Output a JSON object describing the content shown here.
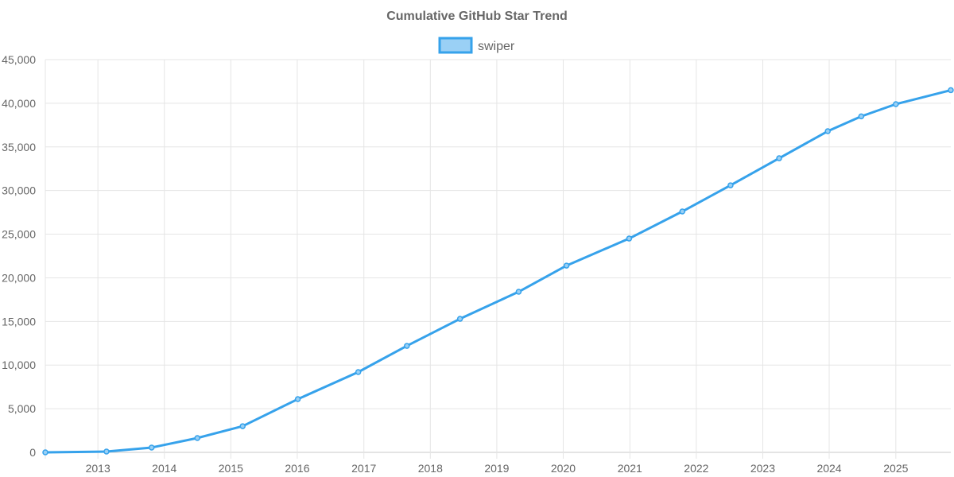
{
  "chart_data": {
    "type": "line",
    "title": "Cumulative GitHub Star Trend",
    "xlabel": "",
    "ylabel": "",
    "x_axis": "time",
    "x_tick_labels": [
      "2013",
      "2014",
      "2015",
      "2016",
      "2017",
      "2018",
      "2019",
      "2020",
      "2021",
      "2022",
      "2023",
      "2024",
      "2025"
    ],
    "y_tick_labels": [
      "0",
      "5,000",
      "10,000",
      "15,000",
      "20,000",
      "25,000",
      "30,000",
      "35,000",
      "40,000",
      "45,000"
    ],
    "ylim": [
      0,
      45000
    ],
    "grid": true,
    "legend_position": "top",
    "colors": {
      "line": "#36a2eb",
      "legend_fill": "#9ad0f5",
      "grid": "#e5e5e5",
      "text": "#666666"
    },
    "series": [
      {
        "name": "swiper",
        "x": [
          "2012-03-18",
          "2013-02-17",
          "2013-10-23",
          "2014-07-01",
          "2015-03-07",
          "2016-01-04",
          "2016-12-01",
          "2017-08-25",
          "2018-06-13",
          "2019-05-01",
          "2020-01-19",
          "2020-12-28",
          "2021-10-16",
          "2022-07-08",
          "2023-04-01",
          "2023-12-24",
          "2024-06-25",
          "2025-01-01",
          "2025-10-30"
        ],
        "values": [
          0,
          90,
          550,
          1640,
          3000,
          6100,
          9200,
          12200,
          15300,
          18400,
          21400,
          24500,
          27600,
          30600,
          33700,
          36800,
          38500,
          39900,
          41500
        ]
      }
    ]
  }
}
